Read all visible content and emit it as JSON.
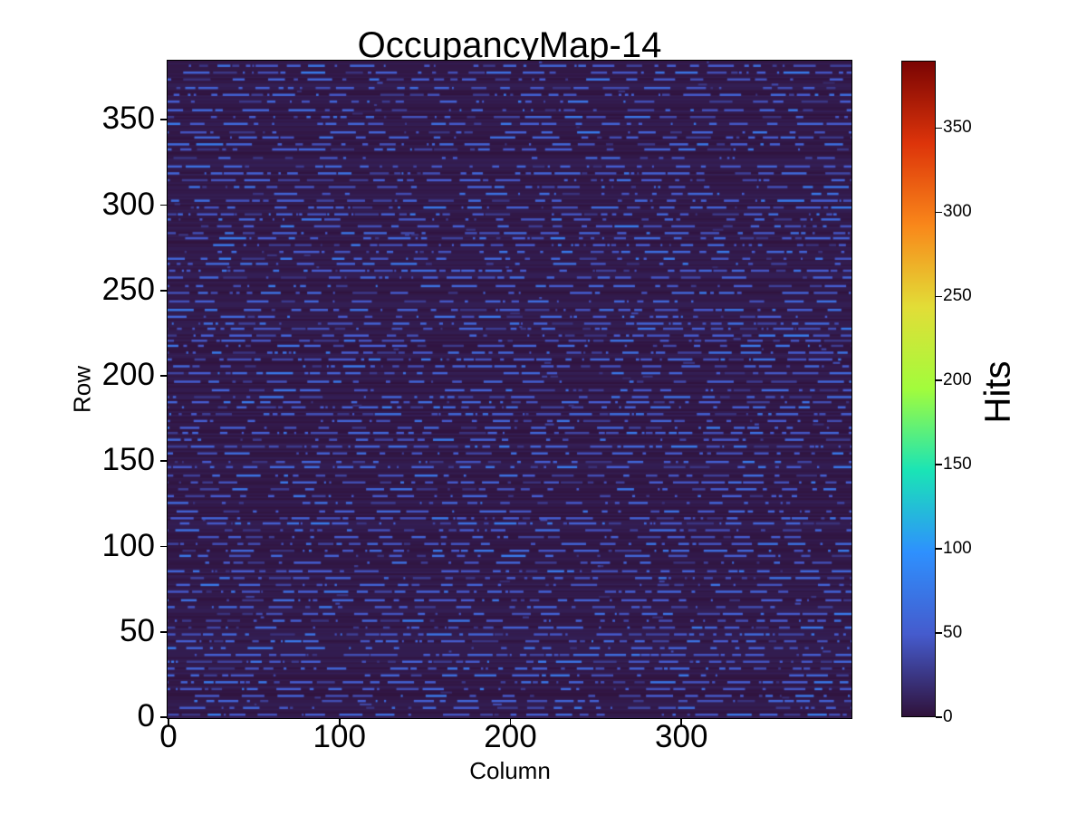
{
  "figure": {
    "background": "#ffffff",
    "text_color": "#000000",
    "spine_color": "#000000"
  },
  "chart_data": {
    "type": "heatmap",
    "title": "OccupancyMap-14",
    "xlabel": "Column",
    "ylabel": "Row",
    "colorbar_label": "Hits",
    "x_ticks": [
      0,
      100,
      200,
      300
    ],
    "y_ticks": [
      0,
      50,
      100,
      150,
      200,
      250,
      300,
      350
    ],
    "colorbar_ticks": [
      0,
      50,
      100,
      150,
      200,
      250,
      300,
      350
    ],
    "x_range": [
      0,
      400
    ],
    "y_range": [
      0,
      385
    ],
    "value_range": [
      0,
      390
    ],
    "grid": false,
    "legend_position": "colorbar-right",
    "colormap": {
      "name": "turbo",
      "anchors": [
        [
          0.0,
          "#30123b"
        ],
        [
          0.125,
          "#455bcd"
        ],
        [
          0.25,
          "#2e90fe"
        ],
        [
          0.375,
          "#1ae4b6"
        ],
        [
          0.5,
          "#a2fc3c"
        ],
        [
          0.625,
          "#e2dd37"
        ],
        [
          0.75,
          "#f9871a"
        ],
        [
          0.875,
          "#dd340a"
        ],
        [
          1.0,
          "#7a0403"
        ]
      ]
    },
    "pattern": {
      "description": "Sparse horizontal blue dash segments (hit counts ~20-80) over a near-zero dark-purple background; dashed rows repeat roughly every 4 rows across the full map",
      "seed": 14,
      "rows": 385,
      "cols": 400,
      "background_hits_range": [
        1,
        9
      ],
      "dash_hits_range": [
        20,
        78
      ],
      "dash_row_step": 4
    }
  }
}
